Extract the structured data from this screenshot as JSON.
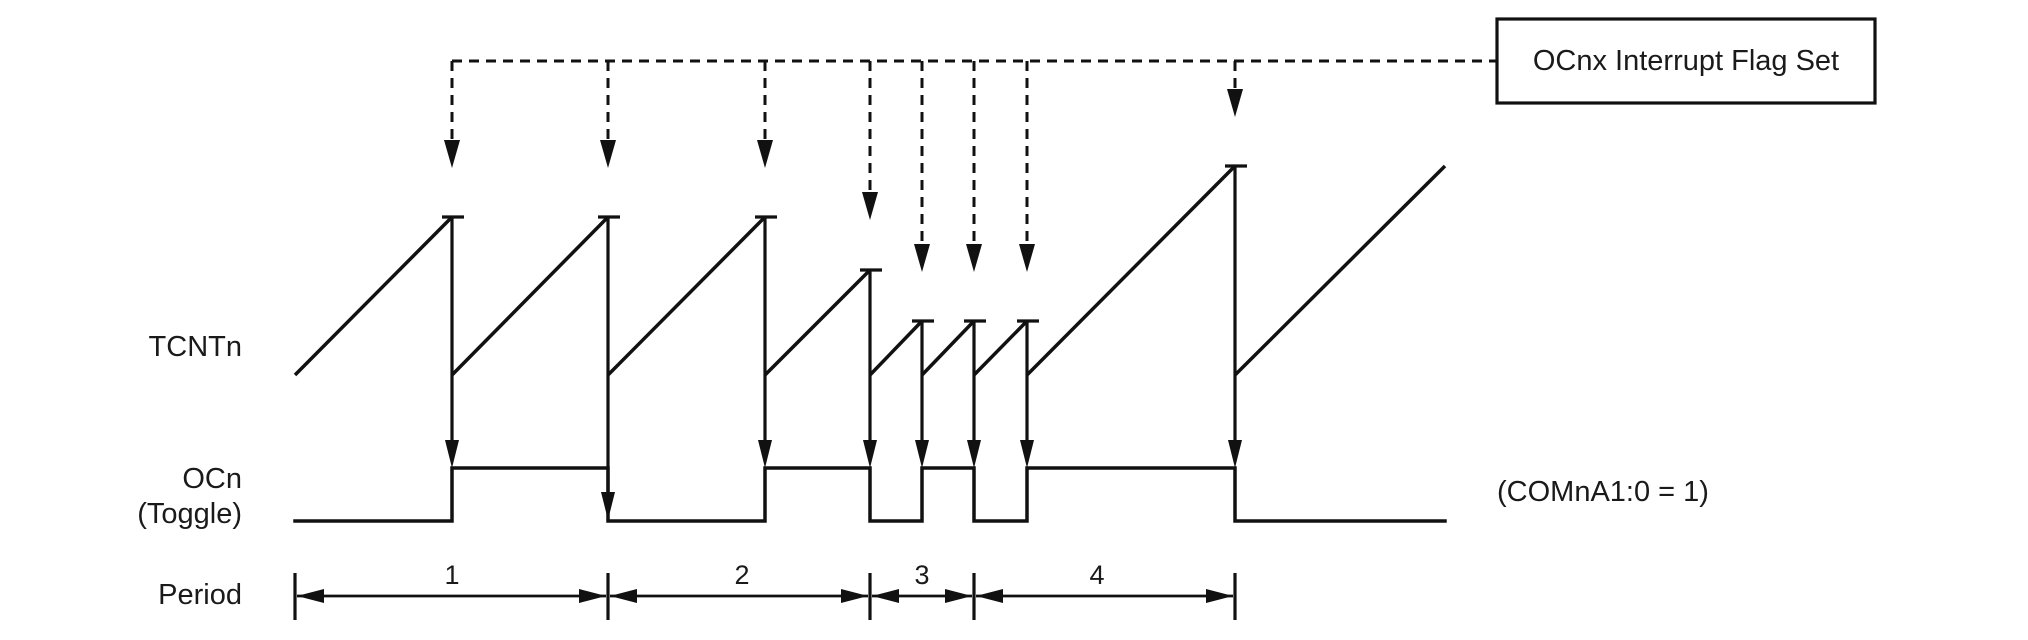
{
  "labels": {
    "tcnt": "TCNTn",
    "ocn": "OCn",
    "toggle": "(Toggle)",
    "period": "Period",
    "flag": "OCnx Interrupt Flag Set",
    "com": "(COMnA1:0 = 1)"
  },
  "periods": [
    {
      "label": "1"
    },
    {
      "label": "2"
    },
    {
      "label": "3"
    },
    {
      "label": "4"
    }
  ],
  "colors": {
    "line": "#111111",
    "background": "#ffffff"
  }
}
